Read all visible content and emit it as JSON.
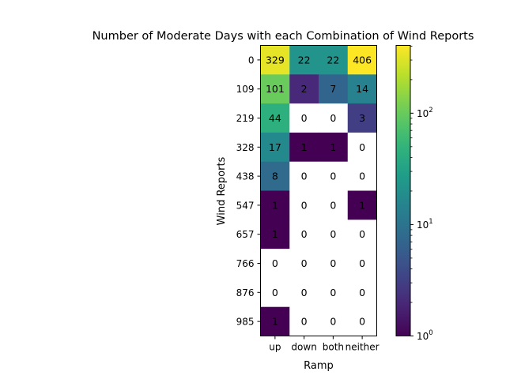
{
  "chart_data": {
    "type": "heatmap",
    "title": "Number of Moderate Days with each Combination of Wind Reports",
    "xlabel": "Ramp",
    "ylabel": "Wind Reports",
    "x_categories": [
      "up",
      "down",
      "both",
      "neither"
    ],
    "y_categories": [
      "0",
      "109",
      "219",
      "328",
      "438",
      "547",
      "657",
      "766",
      "876",
      "985"
    ],
    "values": [
      [
        329,
        22,
        22,
        406
      ],
      [
        101,
        2,
        7,
        14
      ],
      [
        44,
        0,
        0,
        3
      ],
      [
        17,
        1,
        1,
        0
      ],
      [
        8,
        0,
        0,
        0
      ],
      [
        1,
        0,
        0,
        1
      ],
      [
        1,
        0,
        0,
        0
      ],
      [
        0,
        0,
        0,
        0
      ],
      [
        0,
        0,
        0,
        0
      ],
      [
        1,
        0,
        0,
        0
      ]
    ],
    "colorscale": "viridis",
    "color_scale_type": "log",
    "color_range": [
      1,
      406
    ],
    "zero_color": "#ffffff",
    "colorbar_ticks": [
      {
        "value": 1,
        "base": "10",
        "exp": "0"
      },
      {
        "value": 10,
        "base": "10",
        "exp": "1"
      },
      {
        "value": 100,
        "base": "10",
        "exp": "2"
      }
    ],
    "grid": false
  }
}
